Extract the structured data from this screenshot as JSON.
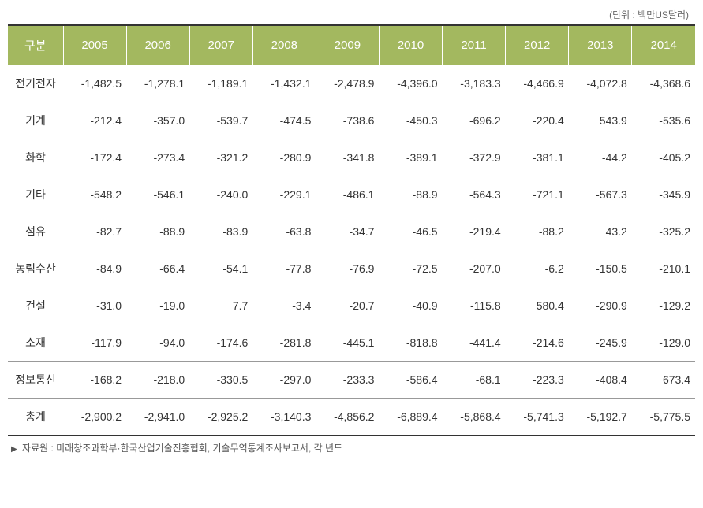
{
  "unit_label": "(단위 : 백만US달러)",
  "table": {
    "columns": [
      "구분",
      "2005",
      "2006",
      "2007",
      "2008",
      "2009",
      "2010",
      "2011",
      "2012",
      "2013",
      "2014"
    ],
    "rows": [
      {
        "label": "전기전자",
        "values": [
          "-1,482.5",
          "-1,278.1",
          "-1,189.1",
          "-1,432.1",
          "-2,478.9",
          "-4,396.0",
          "-3,183.3",
          "-4,466.9",
          "-4,072.8",
          "-4,368.6"
        ]
      },
      {
        "label": "기계",
        "values": [
          "-212.4",
          "-357.0",
          "-539.7",
          "-474.5",
          "-738.6",
          "-450.3",
          "-696.2",
          "-220.4",
          "543.9",
          "-535.6"
        ]
      },
      {
        "label": "화학",
        "values": [
          "-172.4",
          "-273.4",
          "-321.2",
          "-280.9",
          "-341.8",
          "-389.1",
          "-372.9",
          "-381.1",
          "-44.2",
          "-405.2"
        ]
      },
      {
        "label": "기타",
        "values": [
          "-548.2",
          "-546.1",
          "-240.0",
          "-229.1",
          "-486.1",
          "-88.9",
          "-564.3",
          "-721.1",
          "-567.3",
          "-345.9"
        ]
      },
      {
        "label": "섬유",
        "values": [
          "-82.7",
          "-88.9",
          "-83.9",
          "-63.8",
          "-34.7",
          "-46.5",
          "-219.4",
          "-88.2",
          "43.2",
          "-325.2"
        ]
      },
      {
        "label": "농림수산",
        "values": [
          "-84.9",
          "-66.4",
          "-54.1",
          "-77.8",
          "-76.9",
          "-72.5",
          "-207.0",
          "-6.2",
          "-150.5",
          "-210.1"
        ]
      },
      {
        "label": "건설",
        "values": [
          "-31.0",
          "-19.0",
          "7.7",
          "-3.4",
          "-20.7",
          "-40.9",
          "-115.8",
          "580.4",
          "-290.9",
          "-129.2"
        ]
      },
      {
        "label": "소재",
        "values": [
          "-117.9",
          "-94.0",
          "-174.6",
          "-281.8",
          "-445.1",
          "-818.8",
          "-441.4",
          "-214.6",
          "-245.9",
          "-129.0"
        ]
      },
      {
        "label": "정보통신",
        "values": [
          "-168.2",
          "-218.0",
          "-330.5",
          "-297.0",
          "-233.3",
          "-586.4",
          "-68.1",
          "-223.3",
          "-408.4",
          "673.4"
        ]
      },
      {
        "label": "총계",
        "values": [
          "-2,900.2",
          "-2,941.0",
          "-2,925.2",
          "-3,140.3",
          "-4,856.2",
          "-6,889.4",
          "-5,868.4",
          "-5,741.3",
          "-5,192.7",
          "-5,775.5"
        ]
      }
    ]
  },
  "source_note": "자료원 : 미래창조과학부·한국산업기술진흥협회, 기술무역통계조사보고서, 각 년도",
  "styling": {
    "header_bg": "#a3b85f",
    "header_text_color": "#ffffff",
    "cell_text_color": "#333333",
    "border_color": "#999999",
    "top_bottom_border_color": "#333333",
    "background_color": "#ffffff",
    "unit_label_color": "#666666",
    "source_note_color": "#555555",
    "font_family": "Malgun Gothic",
    "header_font_size": 15,
    "cell_font_size": 14,
    "note_font_size": 12,
    "first_col_width": 70
  }
}
